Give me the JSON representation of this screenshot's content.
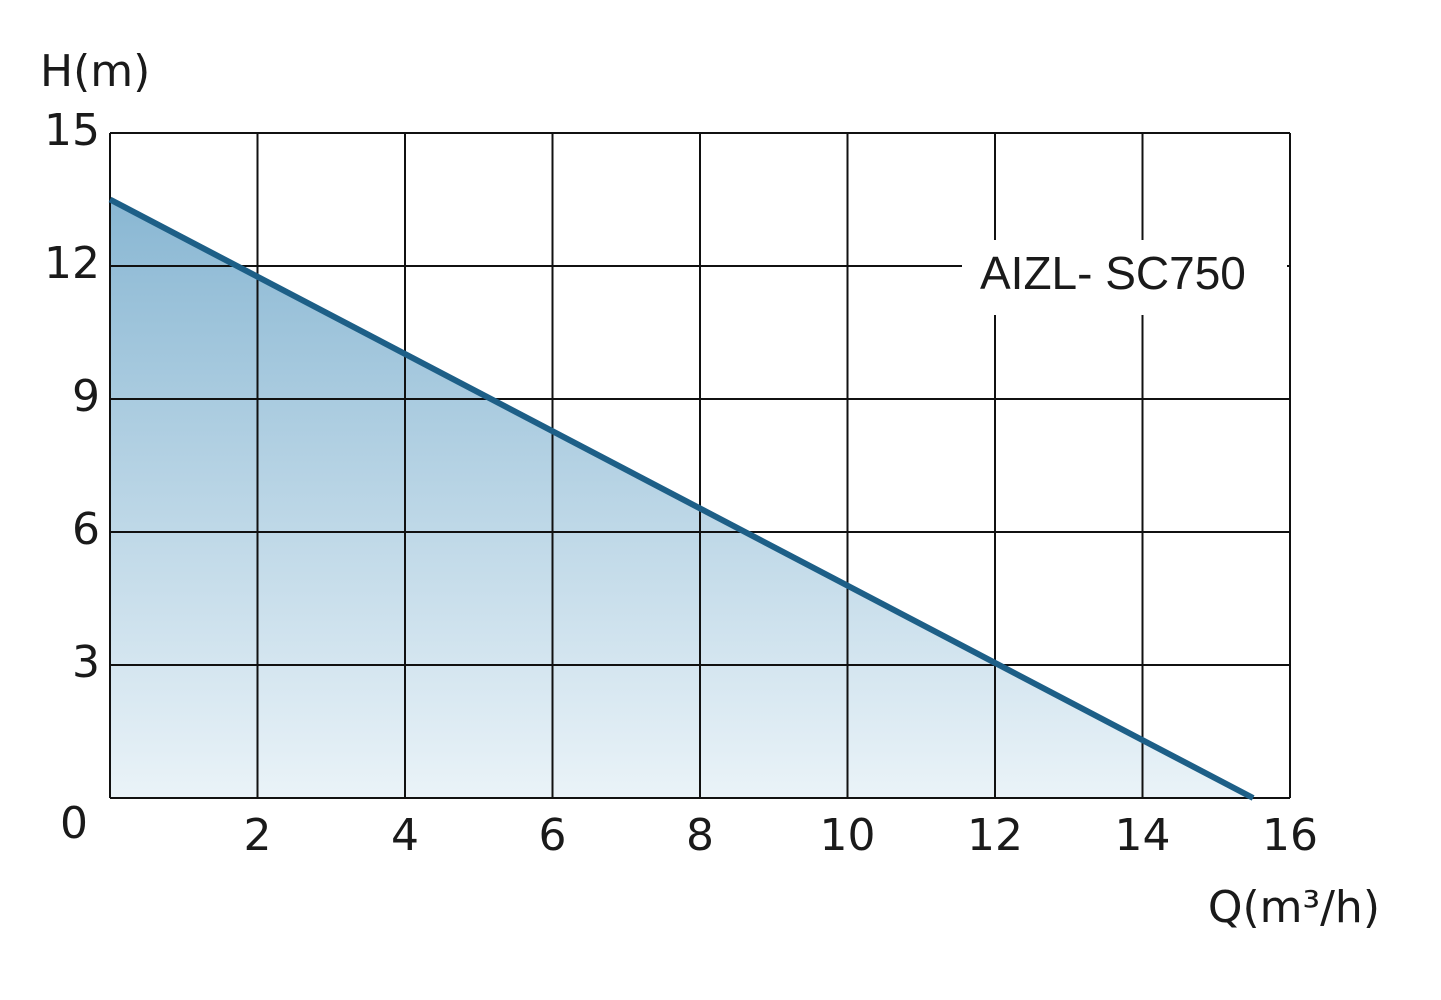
{
  "chart_data": {
    "type": "area",
    "y_label": "H(m)",
    "x_label": "Q(m³/h)",
    "annotation": "AIZL- SC750",
    "x": [
      0,
      15.5
    ],
    "series": [
      {
        "name": "AIZL- SC750",
        "color": "#1d5f87",
        "values": [
          13.5,
          0
        ]
      }
    ],
    "xlim": [
      0,
      16
    ],
    "xticks": [
      2,
      4,
      6,
      8,
      10,
      12,
      14,
      16
    ],
    "ylim": [
      0,
      15
    ],
    "yticks": [
      0,
      3,
      6,
      9,
      12,
      15
    ],
    "grid": true
  }
}
